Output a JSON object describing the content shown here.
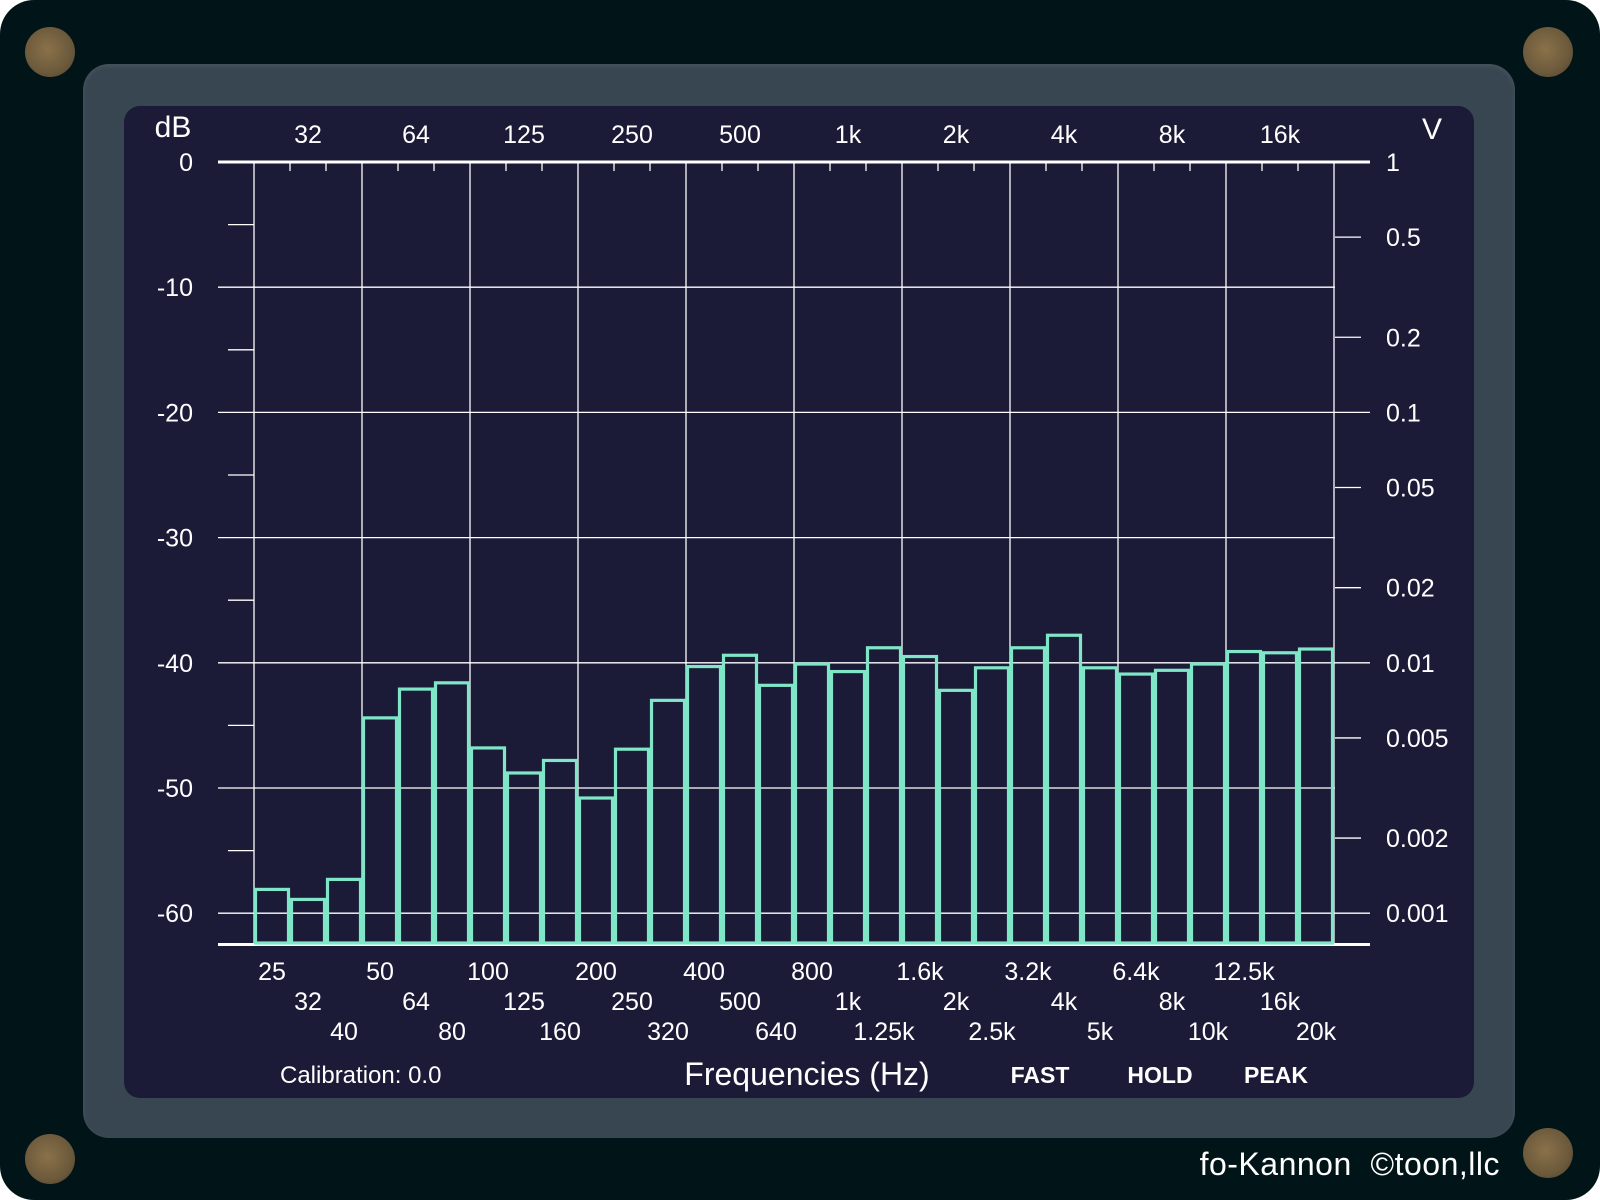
{
  "colors": {
    "bar": "#7fe6c8",
    "grid": "#ffffff",
    "screen": "#1b1b38",
    "bezel": "#384651",
    "frame": "#011418"
  },
  "axes": {
    "left_unit": "dB",
    "right_unit": "V",
    "left_ticks": [
      "0",
      "-10",
      "-20",
      "-30",
      "-40",
      "-50",
      "-60"
    ],
    "right_ticks": [
      {
        "label": "1",
        "db": 0
      },
      {
        "label": "0.5",
        "db": -6
      },
      {
        "label": "0.2",
        "db": -14
      },
      {
        "label": "0.1",
        "db": -20
      },
      {
        "label": "0.05",
        "db": -26
      },
      {
        "label": "0.02",
        "db": -34
      },
      {
        "label": "0.01",
        "db": -40
      },
      {
        "label": "0.005",
        "db": -46
      },
      {
        "label": "0.002",
        "db": -54
      },
      {
        "label": "0.001",
        "db": -60
      }
    ],
    "top_labels": [
      "32",
      "64",
      "125",
      "250",
      "500",
      "1k",
      "2k",
      "4k",
      "8k",
      "16k"
    ],
    "bottom_labels": [
      "25",
      "32",
      "40",
      "50",
      "64",
      "80",
      "100",
      "125",
      "160",
      "200",
      "250",
      "320",
      "400",
      "500",
      "640",
      "800",
      "1k",
      "1.25k",
      "1.6k",
      "2k",
      "2.5k",
      "3.2k",
      "4k",
      "5k",
      "6.4k",
      "8k",
      "10k",
      "12.5k",
      "16k",
      "20k"
    ],
    "xlabel": "Frequencies (Hz)"
  },
  "chart_data": {
    "type": "bar",
    "categories": [
      "25",
      "32",
      "40",
      "50",
      "64",
      "80",
      "100",
      "125",
      "160",
      "200",
      "250",
      "320",
      "400",
      "500",
      "640",
      "800",
      "1k",
      "1.25k",
      "1.6k",
      "2k",
      "2.5k",
      "3.2k",
      "4k",
      "5k",
      "6.4k",
      "8k",
      "10k",
      "12.5k",
      "16k",
      "20k"
    ],
    "values": [
      -58.1,
      -58.9,
      -57.3,
      -44.4,
      -42.1,
      -41.6,
      -46.8,
      -48.8,
      -47.8,
      -50.8,
      -46.9,
      -43.0,
      -40.3,
      -39.4,
      -41.8,
      -40.1,
      -40.7,
      -38.8,
      -39.5,
      -42.2,
      -40.4,
      -38.8,
      -37.8,
      -40.4,
      -40.9,
      -40.6,
      -40.1,
      -39.1,
      -39.2,
      -38.9
    ],
    "xlabel": "Frequencies (Hz)",
    "ylabel": "dB",
    "ylim": [
      -62.5,
      0
    ],
    "grid": true
  },
  "status": {
    "calibration": "Calibration: 0.0",
    "fast": "FAST",
    "hold": "HOLD",
    "peak": "PEAK"
  },
  "brand": "fo-Kannon  ©toon,llc"
}
